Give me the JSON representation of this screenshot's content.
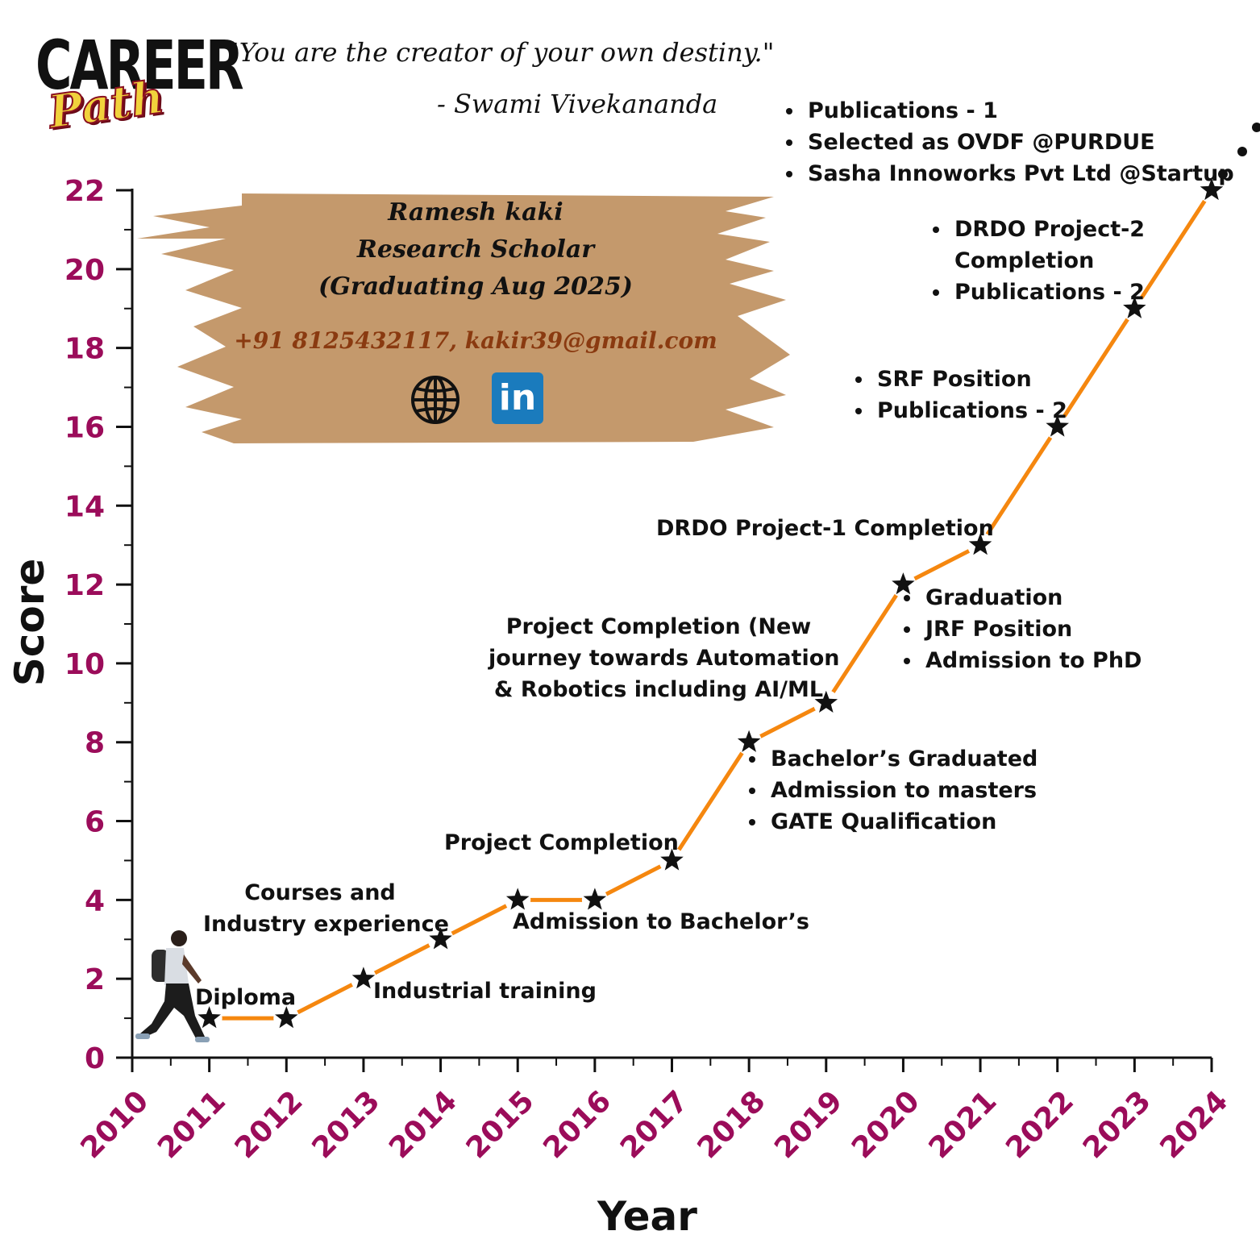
{
  "logo": {
    "line1": "CAREER",
    "line2": "Path"
  },
  "quote": {
    "text": "\"You are the creator of your own destiny.\"",
    "author": "- Swami Vivekananda"
  },
  "profile": {
    "name": "Ramesh kaki",
    "role": "Research Scholar",
    "graduation": "(Graduating Aug 2025)",
    "contact": "+91 8125432117, kakir39@gmail.com",
    "icons": [
      "globe-icon",
      "linkedin-icon"
    ],
    "linkedin_glyph": "in"
  },
  "chart_data": {
    "type": "line",
    "xlabel": "Year",
    "ylabel": "Score",
    "xlim": [
      2010,
      2024
    ],
    "ylim": [
      0,
      22
    ],
    "x_ticks": [
      "2010",
      "2011",
      "2012",
      "2013",
      "2014",
      "2015",
      "2016",
      "2017",
      "2018",
      "2019",
      "2020",
      "2021",
      "2022",
      "2023",
      "2024"
    ],
    "y_ticks": [
      "0",
      "2",
      "4",
      "6",
      "8",
      "10",
      "12",
      "14",
      "16",
      "18",
      "20",
      "22"
    ],
    "series": [
      {
        "x": [
          2011,
          2012,
          2013,
          2014,
          2015,
          2016,
          2017,
          2018,
          2019,
          2020,
          2021,
          2022,
          2023,
          2024
        ],
        "y": [
          1,
          1,
          2,
          3,
          4,
          4,
          5,
          8,
          9,
          12,
          13,
          16,
          19,
          22
        ],
        "color": "#f5870f",
        "marker": "star"
      }
    ],
    "annotations": [
      {
        "id": "a2011",
        "lines": [
          "Diploma"
        ],
        "bullets": false
      },
      {
        "id": "a2013",
        "lines": [
          "Industrial training"
        ],
        "bullets": false
      },
      {
        "id": "a2014",
        "lines": [
          "Courses and",
          "Industry experience"
        ],
        "bullets": false
      },
      {
        "id": "a2016",
        "lines": [
          "Admission to Bachelor’s"
        ],
        "bullets": false
      },
      {
        "id": "a2017",
        "lines": [
          "Project Completion"
        ],
        "bullets": false
      },
      {
        "id": "a2018",
        "lines": [
          "Bachelor’s Graduated",
          "Admission to masters",
          "GATE Qualification"
        ],
        "bullets": true
      },
      {
        "id": "a2019",
        "lines": [
          "Project Completion (New",
          "journey towards Automation",
          "& Robotics including AI/ML"
        ],
        "bullets": false
      },
      {
        "id": "a2020",
        "lines": [
          "Graduation",
          "JRF Position",
          "Admission to PhD"
        ],
        "bullets": true
      },
      {
        "id": "a2021",
        "lines": [
          "DRDO Project-1 Completion"
        ],
        "bullets": false
      },
      {
        "id": "a2022",
        "lines": [
          "SRF Position",
          "Publications - 2"
        ],
        "bullets": true
      },
      {
        "id": "a2023",
        "lines": [
          "DRDO Project-2 Completion",
          "Publications - 2"
        ],
        "bullets": true
      },
      {
        "id": "a2024",
        "lines": [
          "Publications - 1",
          "Selected as OVDF @PURDUE",
          "Sasha Innoworks Pvt Ltd @Startup"
        ],
        "bullets": true
      }
    ]
  }
}
